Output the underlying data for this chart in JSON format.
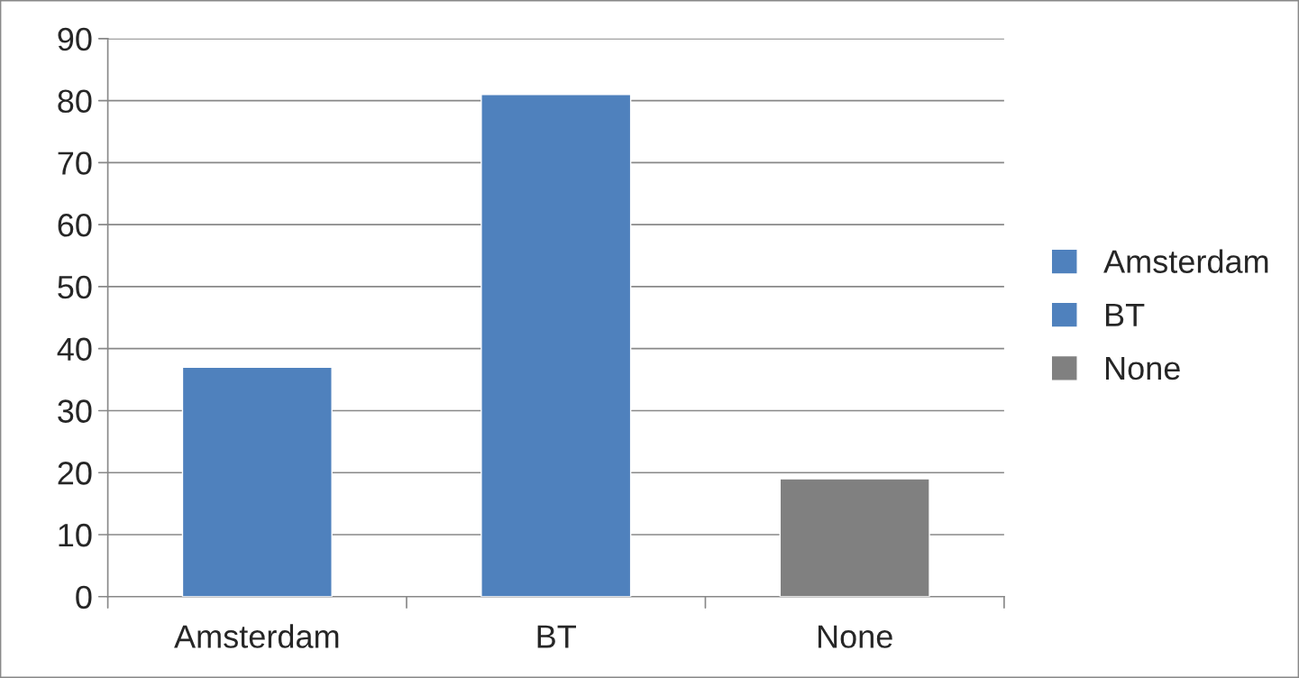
{
  "chart_data": {
    "type": "bar",
    "categories": [
      "Amsterdam",
      "BT",
      "None"
    ],
    "series": [
      {
        "name": "Amsterdam",
        "color": "#4f81bd",
        "values": [
          37,
          null,
          null
        ]
      },
      {
        "name": "BT",
        "color": "#4f81bd",
        "values": [
          null,
          81,
          null
        ]
      },
      {
        "name": "None",
        "color": "#808080",
        "values": [
          null,
          null,
          19
        ]
      }
    ],
    "ylim": [
      0,
      90
    ],
    "yticks": [
      0,
      10,
      20,
      30,
      40,
      50,
      60,
      70,
      80,
      90
    ],
    "grid": "y",
    "legend": "right"
  }
}
